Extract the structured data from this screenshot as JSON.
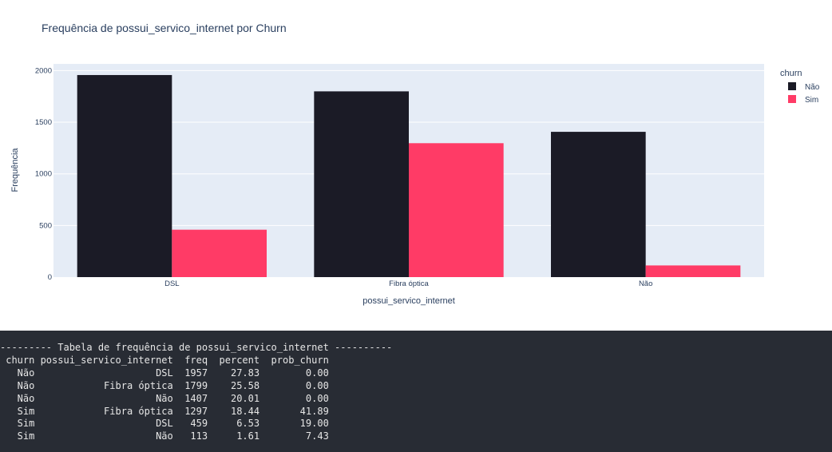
{
  "chart_data": {
    "type": "bar",
    "title": "Frequência de possui_servico_internet por Churn",
    "xlabel": "possui_servico_internet",
    "ylabel": "Frequência",
    "categories": [
      "DSL",
      "Fibra óptica",
      "Não"
    ],
    "series": [
      {
        "name": "Não",
        "values": [
          1957,
          1799,
          1407
        ],
        "color": "#1b1b26"
      },
      {
        "name": "Sim",
        "values": [
          459,
          1297,
          113
        ],
        "color": "#ff3b66"
      }
    ],
    "ylim": [
      0,
      2065
    ],
    "yticks": [
      0,
      500,
      1000,
      1500,
      2000
    ],
    "grid": true,
    "plot_background": "#e5ecf6",
    "legend": {
      "title": "churn",
      "placement": "top-right"
    }
  },
  "console": {
    "background": "#282c34",
    "lines": [
      "--------- Tabela de frequência de possui_servico_internet ----------",
      " churn possui_servico_internet  freq  percent  prob_churn",
      "   Não                     DSL  1957    27.83        0.00",
      "   Não            Fibra óptica  1799    25.58        0.00",
      "   Não                     Não  1407    20.01        0.00",
      "   Sim            Fibra óptica  1297    18.44       41.89",
      "   Sim                     DSL   459     6.53       19.00",
      "   Sim                     Não   113     1.61        7.43"
    ]
  }
}
